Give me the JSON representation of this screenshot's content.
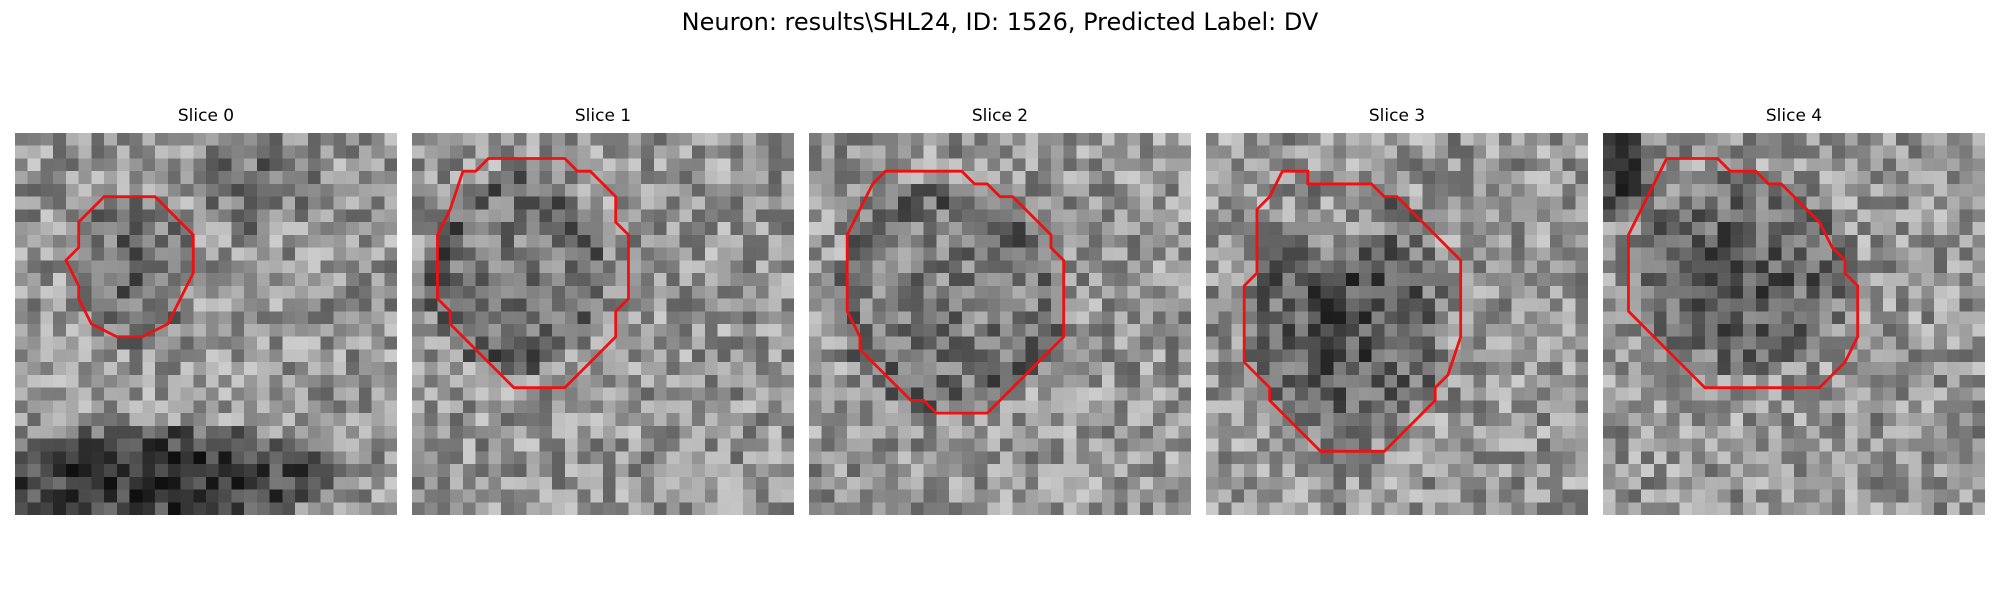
{
  "figure": {
    "title": "Neuron: results\\SHL24, ID: 1526, Predicted Label: DV"
  },
  "panels": [
    {
      "title": "Slice 0",
      "seed": 11,
      "mask_polygon": [
        [
          8,
          5
        ],
        [
          11,
          5
        ],
        [
          13,
          7
        ],
        [
          14,
          8
        ],
        [
          14,
          11
        ],
        [
          13,
          13
        ],
        [
          12,
          15
        ],
        [
          10,
          16
        ],
        [
          8,
          16
        ],
        [
          6,
          15
        ],
        [
          5,
          13
        ],
        [
          5,
          12
        ],
        [
          4,
          10
        ],
        [
          5,
          9
        ],
        [
          5,
          7
        ],
        [
          7,
          5
        ]
      ],
      "dark_ellipses": [
        [
          9,
          11,
          5,
          6,
          45
        ],
        [
          11,
          27,
          14,
          4,
          110
        ],
        [
          19,
          4,
          5,
          4,
          40
        ]
      ]
    },
    {
      "title": "Slice 1",
      "seed": 23,
      "mask_polygon": [
        [
          6,
          2
        ],
        [
          12,
          2
        ],
        [
          13,
          3
        ],
        [
          14,
          3
        ],
        [
          16,
          5
        ],
        [
          16,
          7
        ],
        [
          17,
          8
        ],
        [
          17,
          9
        ],
        [
          17,
          13
        ],
        [
          16,
          14
        ],
        [
          16,
          16
        ],
        [
          14,
          18
        ],
        [
          13,
          19
        ],
        [
          12,
          20
        ],
        [
          8,
          20
        ],
        [
          7,
          19
        ],
        [
          6,
          18
        ],
        [
          4,
          16
        ],
        [
          3,
          15
        ],
        [
          3,
          14
        ],
        [
          2,
          13
        ],
        [
          2,
          8
        ],
        [
          3,
          6
        ],
        [
          4,
          3
        ],
        [
          5,
          3
        ]
      ],
      "dark_ellipses": [
        [
          8,
          11,
          7,
          8,
          90
        ],
        [
          8,
          11,
          5,
          6,
          -70
        ]
      ]
    },
    {
      "title": "Slice 2",
      "seed": 37,
      "mask_polygon": [
        [
          6,
          3
        ],
        [
          12,
          3
        ],
        [
          13,
          4
        ],
        [
          14,
          4
        ],
        [
          15,
          5
        ],
        [
          16,
          5
        ],
        [
          17,
          6
        ],
        [
          18,
          7
        ],
        [
          19,
          8
        ],
        [
          19,
          9
        ],
        [
          20,
          10
        ],
        [
          20,
          16
        ],
        [
          19,
          17
        ],
        [
          18,
          18
        ],
        [
          17,
          19
        ],
        [
          16,
          20
        ],
        [
          14,
          22
        ],
        [
          10,
          22
        ],
        [
          9,
          21
        ],
        [
          8,
          21
        ],
        [
          7,
          20
        ],
        [
          6,
          19
        ],
        [
          5,
          18
        ],
        [
          4,
          17
        ],
        [
          4,
          16
        ],
        [
          3,
          14
        ],
        [
          3,
          10
        ],
        [
          3,
          8
        ],
        [
          4,
          6
        ],
        [
          5,
          4
        ]
      ],
      "dark_ellipses": [
        [
          11,
          13,
          9,
          9,
          85
        ],
        [
          11,
          13,
          7,
          7,
          -60
        ]
      ]
    },
    {
      "title": "Slice 3",
      "seed": 41,
      "mask_polygon": [
        [
          6,
          3
        ],
        [
          8,
          3
        ],
        [
          8,
          4
        ],
        [
          13,
          4
        ],
        [
          14,
          5
        ],
        [
          15,
          5
        ],
        [
          16,
          6
        ],
        [
          19,
          9
        ],
        [
          20,
          10
        ],
        [
          20,
          16
        ],
        [
          19,
          19
        ],
        [
          18,
          20
        ],
        [
          18,
          21
        ],
        [
          15,
          24
        ],
        [
          14,
          25
        ],
        [
          9,
          25
        ],
        [
          8,
          24
        ],
        [
          7,
          23
        ],
        [
          6,
          22
        ],
        [
          5,
          21
        ],
        [
          5,
          20
        ],
        [
          4,
          19
        ],
        [
          3,
          18
        ],
        [
          3,
          16
        ],
        [
          3,
          13
        ],
        [
          3,
          12
        ],
        [
          4,
          11
        ],
        [
          4,
          9
        ],
        [
          4,
          7
        ],
        [
          4,
          6
        ],
        [
          5,
          5
        ]
      ],
      "dark_ellipses": [
        [
          11,
          14,
          8,
          11,
          70
        ],
        [
          10,
          7,
          5,
          3,
          -50
        ]
      ]
    },
    {
      "title": "Slice 4",
      "seed": 53,
      "mask_polygon": [
        [
          5,
          2
        ],
        [
          9,
          2
        ],
        [
          10,
          3
        ],
        [
          12,
          3
        ],
        [
          13,
          4
        ],
        [
          14,
          4
        ],
        [
          15,
          5
        ],
        [
          16,
          6
        ],
        [
          17,
          7
        ],
        [
          18,
          9
        ],
        [
          19,
          10
        ],
        [
          19,
          11
        ],
        [
          20,
          12
        ],
        [
          20,
          16
        ],
        [
          19,
          18
        ],
        [
          18,
          19
        ],
        [
          17,
          20
        ],
        [
          8,
          20
        ],
        [
          7,
          19
        ],
        [
          5,
          17
        ],
        [
          4,
          16
        ],
        [
          3,
          15
        ],
        [
          2,
          14
        ],
        [
          2,
          13
        ],
        [
          2,
          11
        ],
        [
          2,
          8
        ],
        [
          3,
          6
        ],
        [
          4,
          4
        ]
      ],
      "dark_ellipses": [
        [
          11,
          11,
          9,
          8,
          60
        ],
        [
          1,
          3,
          3,
          4,
          90
        ]
      ]
    }
  ]
}
